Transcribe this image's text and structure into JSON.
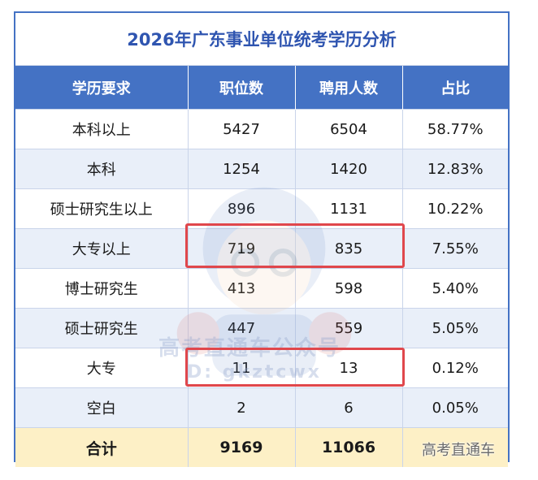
{
  "table": {
    "title": "2026年广东事业单位统考学历分析",
    "headers": [
      "学历要求",
      "职位数",
      "聘用人数",
      "占比"
    ],
    "rows": [
      [
        "本科以上",
        "5427",
        "6504",
        "58.77%"
      ],
      [
        "本科",
        "1254",
        "1420",
        "12.83%"
      ],
      [
        "硕士研究生以上",
        "896",
        "1131",
        "10.22%"
      ],
      [
        "大专以上",
        "719",
        "835",
        "7.55%"
      ],
      [
        "博士研究生",
        "413",
        "598",
        "5.40%"
      ],
      [
        "硕士研究生",
        "447",
        "559",
        "5.05%"
      ],
      [
        "大专",
        "11",
        "13",
        "0.12%"
      ],
      [
        "空白",
        "2",
        "6",
        "0.05%"
      ]
    ],
    "total": [
      "合计",
      "9169",
      "11066",
      ""
    ]
  },
  "watermark": {
    "main": "高考直通车公众号",
    "sub": "D: gkztcwx",
    "corner": "高考直通车"
  },
  "colors": {
    "header_bg": "#4472c4",
    "title_text": "#2f55b0",
    "highlight_border": "#e0474c",
    "total_bg": "#fdf0c6",
    "stripe_bg": "#e9eff9"
  }
}
